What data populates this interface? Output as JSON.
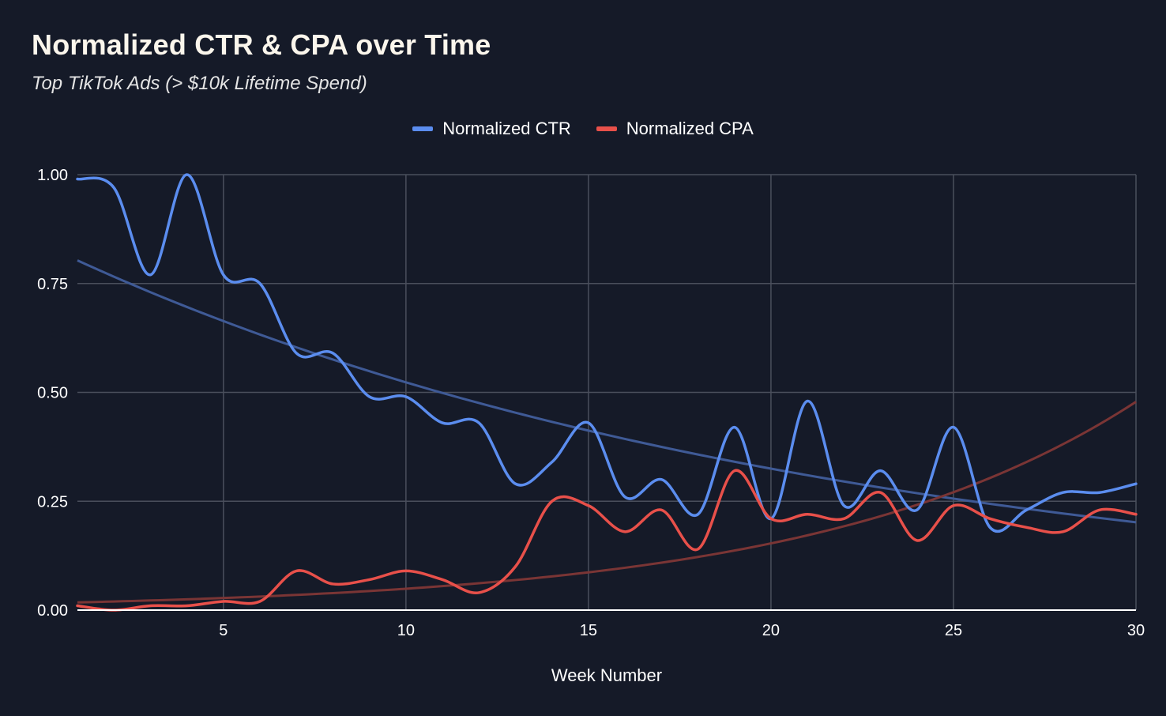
{
  "chart_data": {
    "type": "line",
    "title": "Normalized CTR & CPA over Time",
    "subtitle": "Top TikTok Ads (> $10k Lifetime Spend)",
    "xlabel": "Week Number",
    "ylabel": "",
    "xlim": [
      1,
      30
    ],
    "ylim": [
      0,
      1
    ],
    "x_ticks": [
      5,
      10,
      15,
      20,
      25,
      30
    ],
    "x_tick_labels": [
      "5",
      "10",
      "15",
      "20",
      "25",
      "30"
    ],
    "y_ticks": [
      0,
      0.25,
      0.5,
      0.75,
      1.0
    ],
    "y_tick_labels": [
      "0.00",
      "0.25",
      "0.50",
      "0.75",
      "1.00"
    ],
    "grid": true,
    "legend_position": "top",
    "x": [
      1,
      2,
      3,
      4,
      5,
      6,
      7,
      8,
      9,
      10,
      11,
      12,
      13,
      14,
      15,
      16,
      17,
      18,
      19,
      20,
      21,
      22,
      23,
      24,
      25,
      26,
      27,
      28,
      29,
      30
    ],
    "series": [
      {
        "name": "Normalized CTR",
        "color": "#5b8def",
        "values": [
          0.99,
          0.97,
          0.77,
          1.0,
          0.77,
          0.75,
          0.59,
          0.59,
          0.49,
          0.49,
          0.43,
          0.43,
          0.29,
          0.34,
          0.43,
          0.26,
          0.3,
          0.22,
          0.42,
          0.21,
          0.48,
          0.24,
          0.32,
          0.23,
          0.42,
          0.19,
          0.23,
          0.27,
          0.27,
          0.29
        ]
      },
      {
        "name": "Normalized CPA",
        "color": "#e8504a",
        "values": [
          0.01,
          0.0,
          0.01,
          0.01,
          0.02,
          0.02,
          0.09,
          0.06,
          0.07,
          0.09,
          0.07,
          0.04,
          0.1,
          0.25,
          0.24,
          0.18,
          0.23,
          0.14,
          0.32,
          0.21,
          0.22,
          0.21,
          0.27,
          0.16,
          0.24,
          0.21,
          0.19,
          0.18,
          0.23,
          0.22
        ]
      }
    ],
    "trendlines": [
      {
        "series": "Normalized CTR",
        "type": "exponential",
        "color": "#3f5a96"
      },
      {
        "series": "Normalized CPA",
        "type": "exponential",
        "color": "#7a3535"
      }
    ]
  }
}
